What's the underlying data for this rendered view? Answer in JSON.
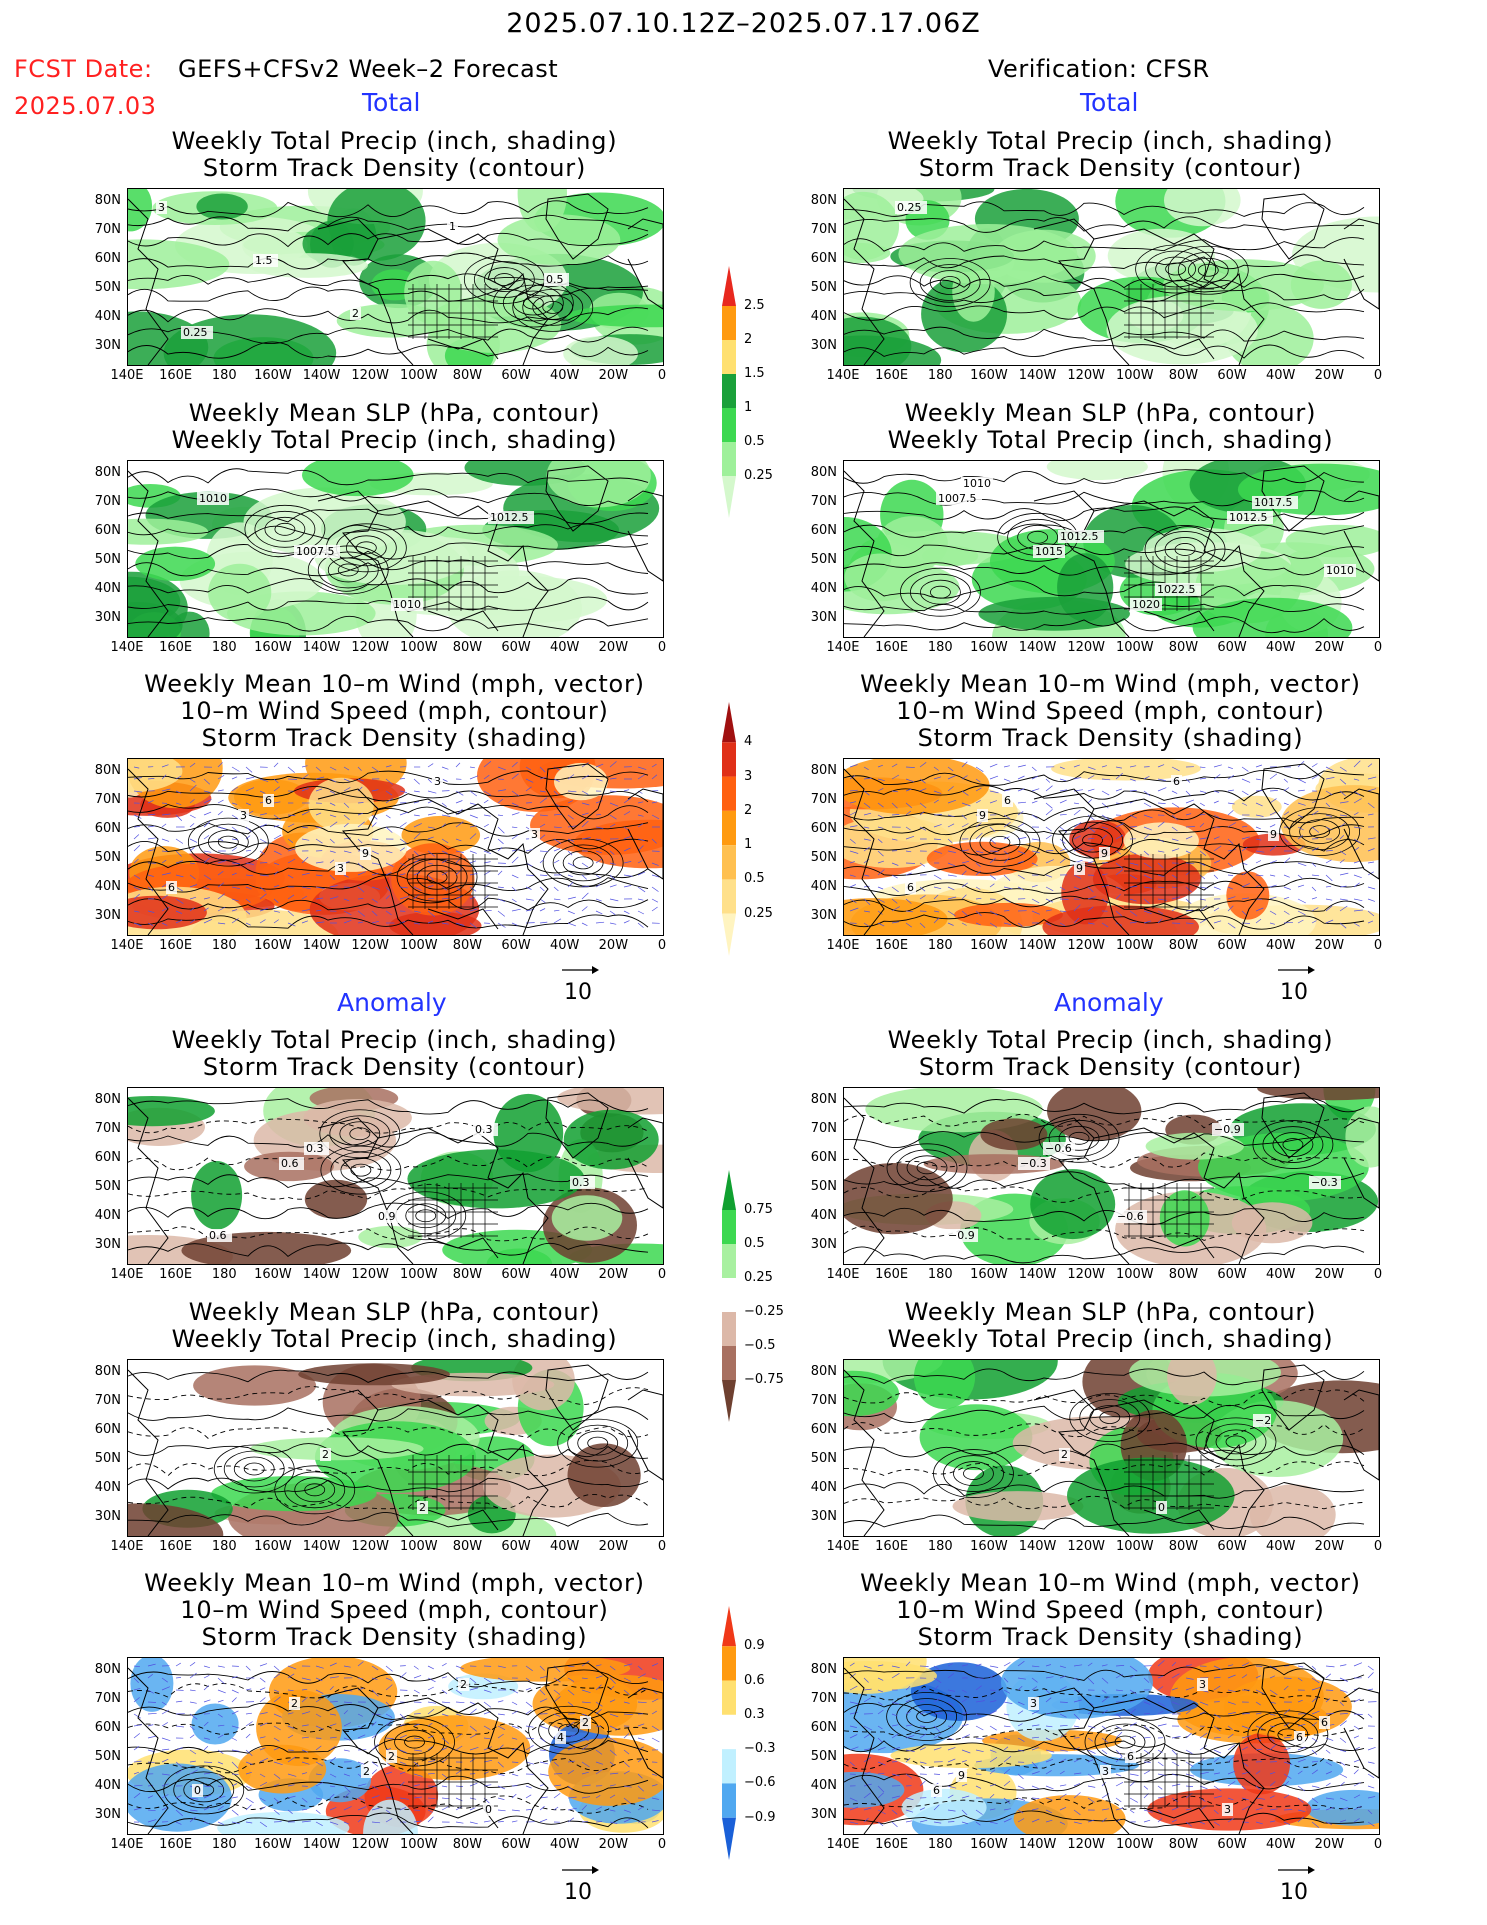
{
  "header": {
    "title": "2025.07.10.12Z–2025.07.17.06Z",
    "fcst_prefix": "FCST Date:",
    "fcst_model": "GEFS+CFSv2 Week–2 Forecast",
    "fcst_date": "2025.07.03",
    "verification": "Verification: CFSR"
  },
  "sections": {
    "total": "Total",
    "anomaly": "Anomaly"
  },
  "panel_titles": {
    "precip_storm": [
      "Weekly Total Precip (inch, shading)",
      "Storm Track Density (contour)"
    ],
    "slp_precip": [
      "Weekly Mean SLP (hPa, contour)",
      "Weekly Total Precip (inch, shading)"
    ],
    "wind_storm": [
      "Weekly Mean 10–m Wind (mph, vector)",
      "10–m Wind Speed (mph, contour)",
      "Storm Track Density (shading)"
    ]
  },
  "axes": {
    "lat_labels": [
      "80N",
      "70N",
      "60N",
      "50N",
      "40N",
      "30N"
    ],
    "lon_labels": [
      "140E",
      "160E",
      "180",
      "160W",
      "140W",
      "120W",
      "100W",
      "80W",
      "60W",
      "40W",
      "20W",
      "0"
    ]
  },
  "vector_reference": "10",
  "colorbars": {
    "total_precip": {
      "labels": [
        "2.5",
        "2",
        "1.5",
        "1",
        "0.5",
        "0.25"
      ],
      "colors": [
        "#e8281e",
        "#ff9a10",
        "#ffe070",
        "#1aa03a",
        "#3cd850",
        "#9ef09a",
        "#d4f8cc"
      ]
    },
    "total_storm": {
      "labels": [
        "4",
        "3",
        "2",
        "1",
        "0.5",
        "0.25"
      ],
      "colors": [
        "#a01010",
        "#e03018",
        "#ff6010",
        "#ff9a10",
        "#ffc050",
        "#ffe08a",
        "#fff4c0"
      ]
    },
    "anom_precip": {
      "labels": [
        "0.75",
        "0.5",
        "0.25",
        "−0.25",
        "−0.5",
        "−0.75"
      ],
      "colors": [
        "#10a030",
        "#3cd850",
        "#a8f0a0",
        "#ffffff",
        "#dcb8a8",
        "#a87060",
        "#6e4030"
      ]
    },
    "anom_storm": {
      "labels": [
        "0.9",
        "0.6",
        "0.3",
        "−0.3",
        "−0.6",
        "−0.9"
      ],
      "colors": [
        "#f03818",
        "#ff9a10",
        "#ffe070",
        "#ffffff",
        "#c0f0ff",
        "#50a8f0",
        "#1a60d8"
      ]
    }
  },
  "contour_labels": {
    "fcst_total_precip": [
      "3",
      "1.5",
      "2",
      "1",
      "0.5",
      "0.25"
    ],
    "ver_total_precip": [
      "0.25"
    ],
    "fcst_total_slp": [
      "1010",
      "1007.5",
      "1010",
      "1012.5"
    ],
    "ver_total_slp": [
      "1007.5",
      "1015",
      "1020",
      "1012.5",
      "1010",
      "1010",
      "1012.5",
      "1022.5",
      "1017.5"
    ],
    "fcst_total_wind": [
      "3",
      "3",
      "3",
      "3",
      "6",
      "6",
      "9"
    ],
    "ver_total_wind": [
      "9",
      "9",
      "6",
      "9",
      "6",
      "6",
      "9"
    ],
    "fcst_anom_precip": [
      "0.6",
      "0.9",
      "0.3",
      "0.3",
      "0.6",
      "0.3"
    ],
    "ver_anom_precip": [
      "−0.3",
      "−0.6",
      "−0.9",
      "−0.3",
      "−0.9",
      "−0.6"
    ],
    "fcst_anom_slp": [
      "2",
      "2"
    ],
    "ver_anom_slp": [
      "2",
      "0",
      "−2"
    ],
    "fcst_anom_wind": [
      "2",
      "2",
      "4",
      "0",
      "2",
      "2",
      "0",
      "2"
    ],
    "ver_anom_wind": [
      "3",
      "3",
      "6",
      "6",
      "3",
      "6",
      "3",
      "6",
      "9"
    ]
  }
}
